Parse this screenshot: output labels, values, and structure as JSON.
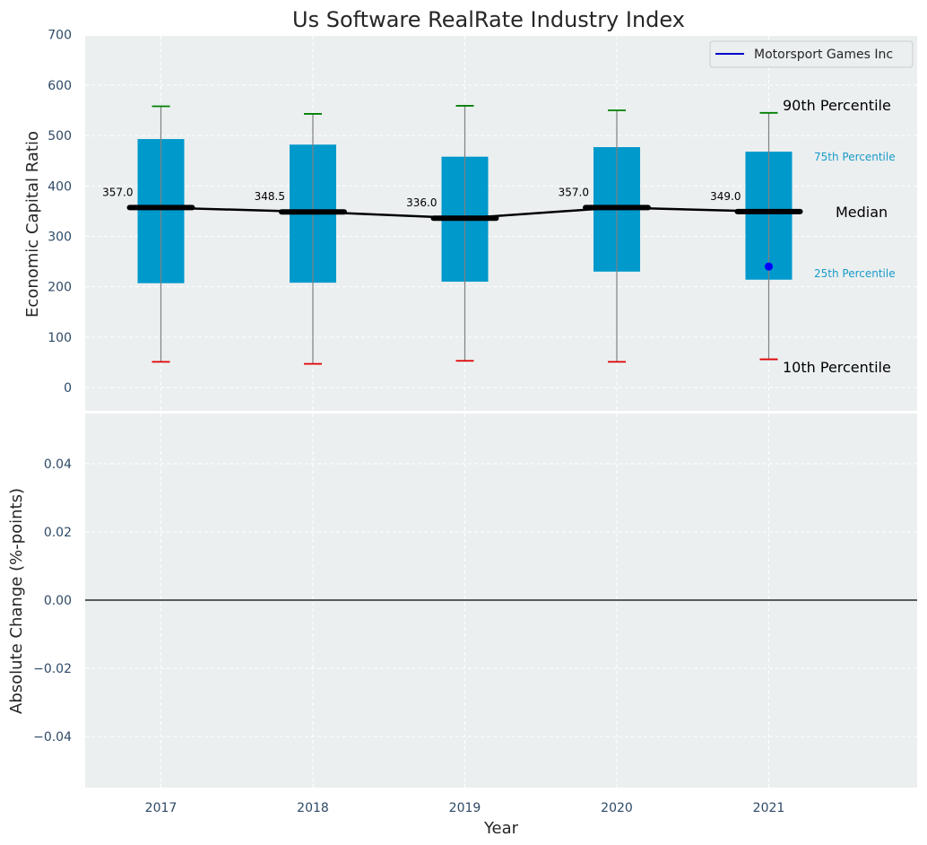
{
  "chart_data": {
    "type": "box",
    "title": "Us Software RealRate Industry Index",
    "xlabel": "Year",
    "categories": [
      "2017",
      "2018",
      "2019",
      "2020",
      "2021"
    ],
    "colors": {
      "background": "#ebeff0",
      "box": "#0099cc",
      "whisker_top": "#008000",
      "whisker_bottom": "#e00000",
      "median_line": "#000000",
      "company_point": "#0000ff"
    },
    "top_panel": {
      "ylabel": "Economic Capital Ratio",
      "ylim": [
        -50,
        700
      ],
      "yticks": [
        "0",
        "100",
        "200",
        "300",
        "400",
        "500",
        "600",
        "700"
      ],
      "ytick_values": [
        0,
        100,
        200,
        300,
        400,
        500,
        600,
        700
      ],
      "p10": [
        51,
        47,
        53,
        51,
        56
      ],
      "p25": [
        207,
        208,
        210,
        230,
        214
      ],
      "median": [
        357.0,
        348.5,
        336.0,
        357.0,
        349.0
      ],
      "median_labels": [
        "357.0",
        "348.5",
        "336.0",
        "357.0",
        "349.0"
      ],
      "p75": [
        493,
        482,
        458,
        477,
        468
      ],
      "p90": [
        558,
        543,
        559,
        550,
        545
      ],
      "company_series": {
        "name": "Motorsport Games Inc",
        "x": [
          "2021"
        ],
        "values": [
          240
        ]
      },
      "legend_location": "top-right",
      "annotations": {
        "p90": "90th Percentile",
        "p75": "75th Percentile",
        "median": "Median",
        "p25": "25th Percentile",
        "p10": "10th Percentile"
      }
    },
    "bottom_panel": {
      "ylabel": "Absolute Change (%-points)",
      "ylim": [
        -0.055,
        0.055
      ],
      "yticks": [
        "−0.04",
        "−0.02",
        "0.00",
        "0.02",
        "0.04"
      ],
      "ytick_values": [
        -0.04,
        -0.02,
        0.0,
        0.02,
        0.04
      ]
    },
    "grid": true
  }
}
